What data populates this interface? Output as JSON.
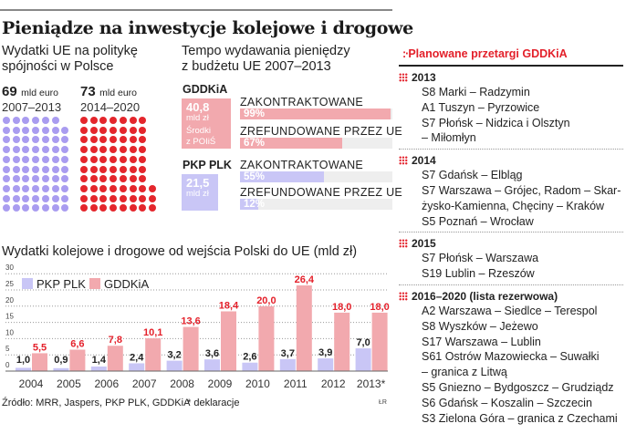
{
  "title": "Pieniądze na inwestycje kolejowe i drogowe",
  "cohesion": {
    "heading_line1": "Wydatki UE na politykę",
    "heading_line2": "spójności w Polsce",
    "periods": [
      {
        "amount": "69",
        "unit": "mld euro",
        "years": "2007–2013",
        "dots": 69,
        "color": "#a99cf0"
      },
      {
        "amount": "73",
        "unit": "mld euro",
        "years": "2014–2020",
        "dots": 73,
        "color": "#e4262c"
      }
    ]
  },
  "tempo": {
    "heading_line1": "Tempo wydawania pieniędzy",
    "heading_line2": "z budżetu UE 2007–2013",
    "gddkia": {
      "name": "GDDKiA",
      "amount": "40,8",
      "unit": "mld zł",
      "note1": "Środki",
      "note2": "z POIiŚ",
      "bars": [
        {
          "label": "ZAKONTRAKTOWANE",
          "text": "99%",
          "value": 99
        },
        {
          "label": "ZREFUNDOWANE PRZEZ UE",
          "text": "67%",
          "value": 67
        }
      ]
    },
    "pkp": {
      "name": "PKP PLK",
      "amount": "21,5",
      "unit": "mld zł",
      "bars": [
        {
          "label": "ZAKONTRAKTOWANE",
          "text": "55%",
          "value": 55
        },
        {
          "label": "ZREFUNDOWANE PRZEZ UE",
          "text": "12%",
          "value": 12
        }
      ]
    }
  },
  "tenders": {
    "heading": "Planowane przetargi GDDKiA",
    "sections": [
      {
        "year": "2013",
        "items": [
          "S8 Marki – Radzymin",
          "A1 Tuszyn – Pyrzowice",
          "S7 Płońsk – Nidzica i Olsztyn",
          "– Miłomłyn"
        ]
      },
      {
        "year": "2014",
        "items": [
          "S7 Gdańsk – Elbląg",
          "S7 Warszawa – Grójec, Radom – Skar-",
          "żysko-Kamienna, Chęciny – Kraków",
          "S5 Poznań – Wrocław"
        ]
      },
      {
        "year": "2015",
        "items": [
          "S7 Płońsk – Warszawa",
          "S19 Lublin – Rzeszów"
        ]
      },
      {
        "year": "2016–2020 (lista rezerwowa)",
        "items": [
          "A2 Warszawa – Siedlce – Terespol",
          "S8 Wyszków – Jeżewo",
          "S17 Warszawa – Lublin",
          "S61 Ostrów Mazowiecka – Suwałki",
          "– granica z Litwą",
          "S5 Gniezno – Bydgoszcz – Grudziądz",
          "S6 Gdańsk – Koszalin – Szczecin",
          "S3 Zielona Góra – granica z Czechami"
        ]
      }
    ]
  },
  "chart_data": {
    "type": "bar",
    "title": "Wydatki kolejowe i drogowe od wejścia Polski do UE (mld zł)",
    "categories": [
      "2004",
      "2005",
      "2006",
      "2007",
      "2008",
      "2009",
      "2010",
      "2011",
      "2012",
      "2013*"
    ],
    "series": [
      {
        "name": "PKP PLK",
        "color": "#c9c6f6",
        "label_color": "#222222",
        "values": [
          1.0,
          0.9,
          1.4,
          2.4,
          3.2,
          3.6,
          2.6,
          3.7,
          3.9,
          7.0
        ],
        "labels": [
          "1,0",
          "0,9",
          "1,4",
          "2,4",
          "3,2",
          "3,6",
          "2,6",
          "3,7",
          "3,9",
          "7,0"
        ]
      },
      {
        "name": "GDDKiA",
        "color": "#f2a9ae",
        "label_color": "#e4202a",
        "values": [
          5.5,
          6.6,
          7.8,
          10.1,
          13.6,
          18.4,
          20.0,
          26.4,
          18.0,
          18.0
        ],
        "labels": [
          "5,5",
          "6,6",
          "7,8",
          "10,1",
          "13,6",
          "18,4",
          "20,0",
          "26,4",
          "18,0",
          "18,0"
        ]
      }
    ],
    "yticks": [
      "0",
      "5",
      "10",
      "15",
      "20",
      "25",
      "30"
    ],
    "ylim": [
      0,
      30
    ],
    "grid": true,
    "legend": "top-left"
  },
  "footer": {
    "source": "Źródło: MRR, Jaspers, PKP PLK, GDDKiA",
    "note": "* deklaracje",
    "credit": "ŁR"
  }
}
